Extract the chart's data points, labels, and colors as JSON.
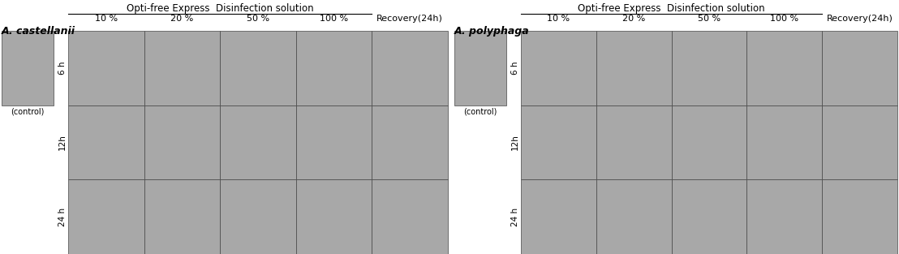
{
  "title_left": "Opti-free Express  Disinfection solution",
  "title_right": "Opti-free Express  Disinfection solution",
  "species_left": "A. castellanii",
  "species_right": "A. polyphaga",
  "control_label": "(control)",
  "col_labels": [
    "10 %",
    "20 %",
    "50 %",
    "100 %",
    "Recovery(24h)"
  ],
  "row_labels": [
    "6 h",
    "12h",
    "24 h"
  ],
  "bg_color": "#ffffff",
  "cell_color": "#a8a8a8",
  "line_color": "#000000",
  "title_fontsize": 8.5,
  "label_fontsize": 8,
  "species_fontsize": 9,
  "row_label_fontsize": 7.5,
  "ctrl_label_fontsize": 7
}
